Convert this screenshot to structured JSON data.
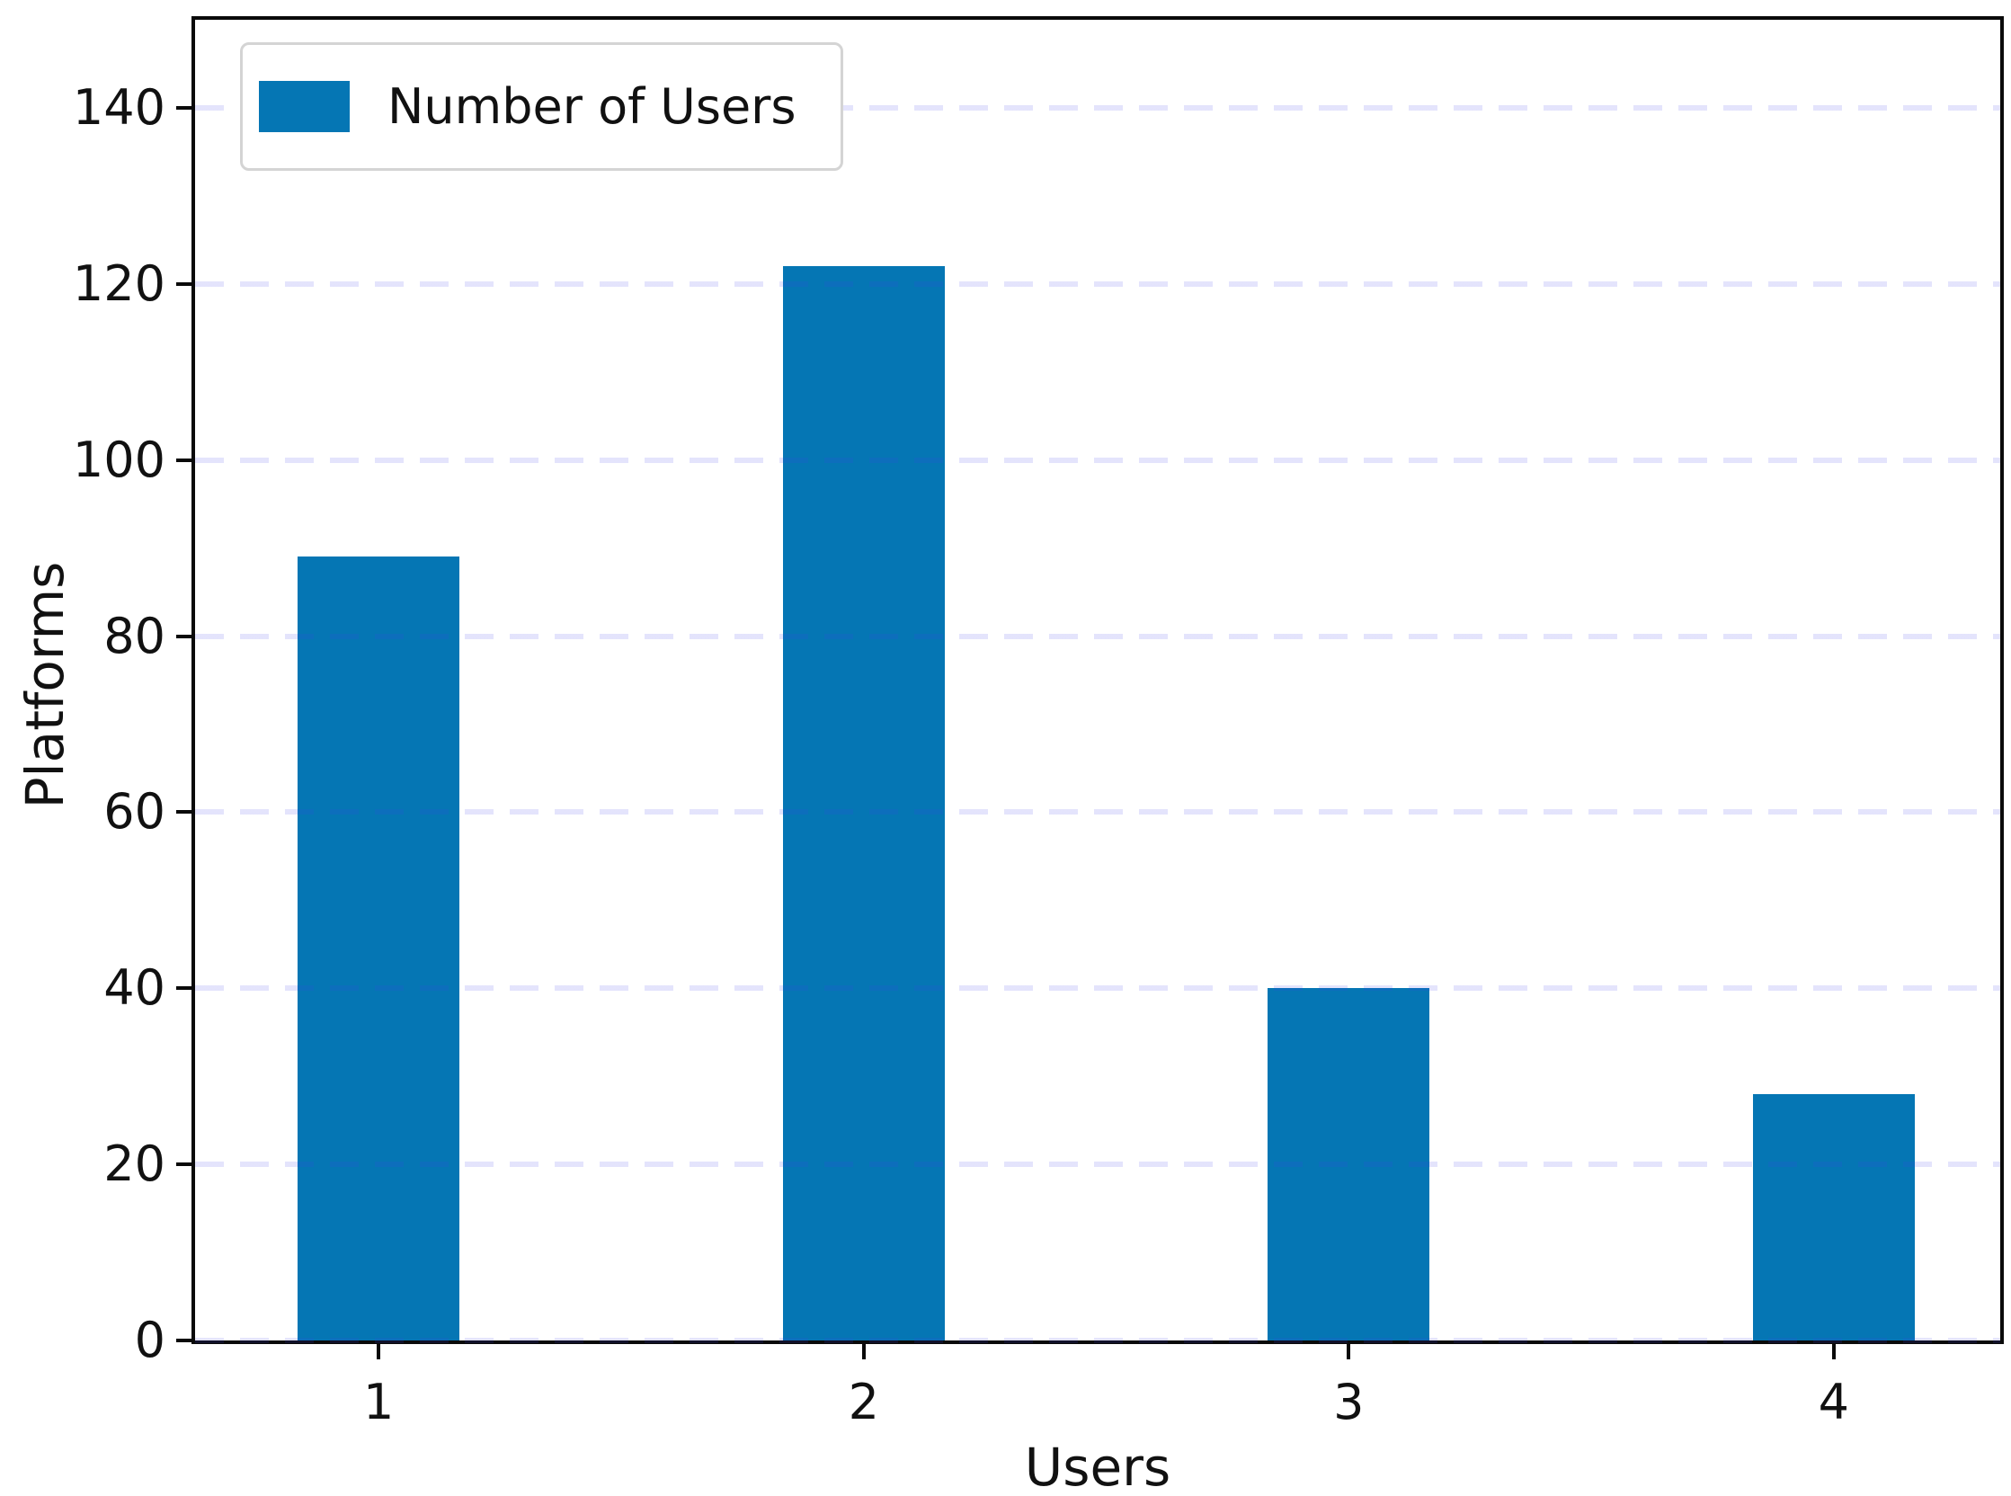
{
  "figure": {
    "background": "#ffffff",
    "frame_color": "#0a0a0a",
    "text_color": "#111111"
  },
  "chart_data": {
    "type": "bar",
    "title": "",
    "xlabel": "Users",
    "ylabel": "Platforms",
    "categories": [
      "1",
      "2",
      "3",
      "4"
    ],
    "series": [
      {
        "name": "Number of Users",
        "values": [
          89,
          122,
          40,
          28
        ]
      }
    ],
    "bar_color": "#0576b4",
    "ylim": [
      0,
      150
    ],
    "yticks": [
      0,
      20,
      40,
      60,
      80,
      100,
      120,
      140
    ],
    "grid": {
      "axis": "y",
      "style": "dashed",
      "color": "#e6e6fa",
      "drawn_over_bars": true
    },
    "legend": {
      "label": "Number of Users",
      "position": "upper left",
      "swatch_color": "#0576b4"
    }
  }
}
